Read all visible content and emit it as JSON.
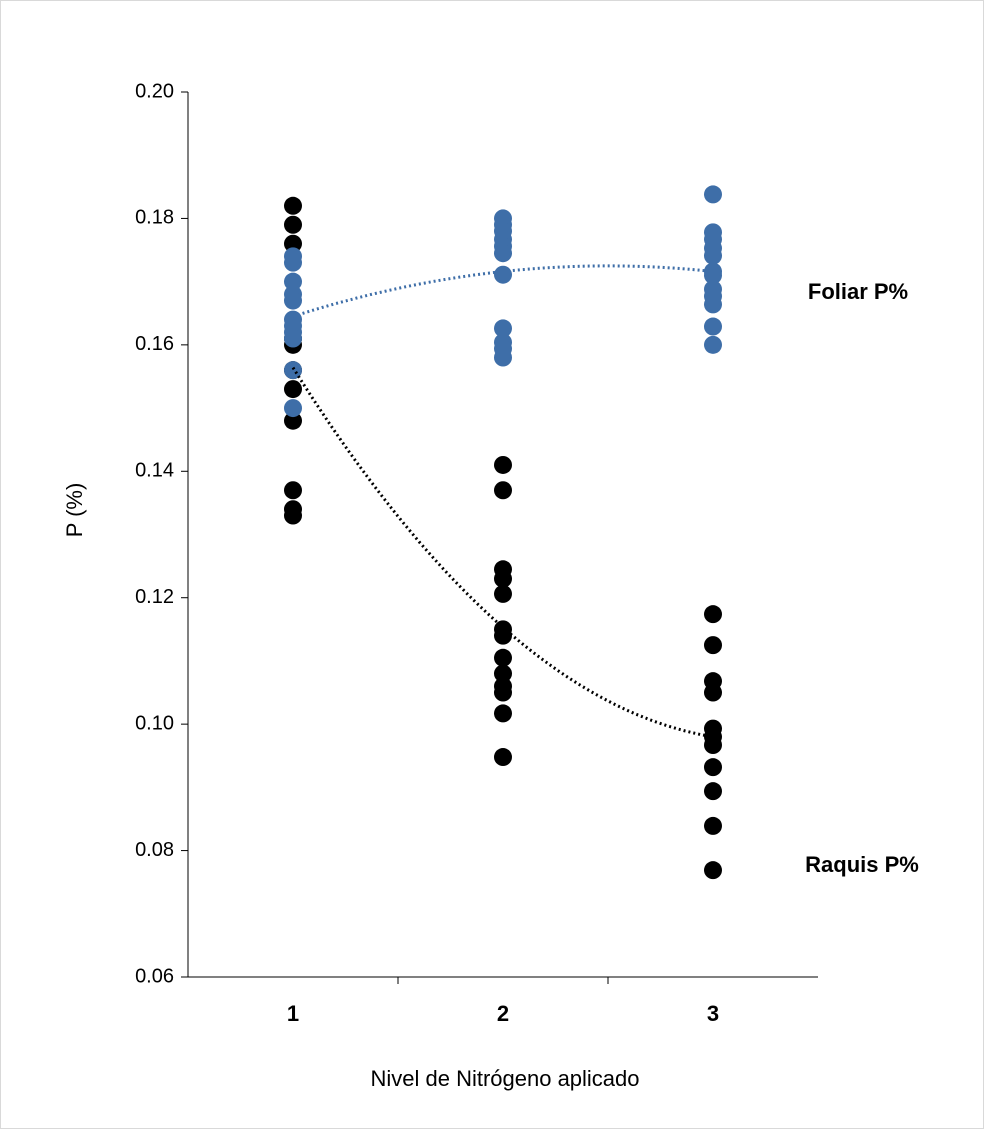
{
  "chart_data": {
    "type": "scatter",
    "x_label": "Nivel de Nitrógeno aplicado",
    "y_label": "P (%)",
    "xlim": [
      0.5,
      3.5
    ],
    "xticks": [
      1,
      2,
      3
    ],
    "ylim": [
      0.06,
      0.2
    ],
    "yticks": [
      {
        "value": 0.06,
        "label": "0.06"
      },
      {
        "value": 0.08,
        "label": "0.08"
      },
      {
        "value": 0.1,
        "label": "0.10"
      },
      {
        "value": 0.12,
        "label": "0.12"
      },
      {
        "value": 0.14,
        "label": "0.14"
      },
      {
        "value": 0.16,
        "label": "0.16"
      },
      {
        "value": 0.18,
        "label": "0.18"
      },
      {
        "value": 0.2,
        "label": "0.20"
      }
    ],
    "series": [
      {
        "name": "Raquis P%",
        "color": "#000000",
        "x": [
          1,
          1,
          1,
          1,
          1,
          1,
          1,
          1,
          1,
          1,
          1,
          2,
          2,
          2,
          2,
          2,
          2,
          2,
          2,
          2,
          2,
          2,
          2,
          2,
          3,
          3,
          3,
          3,
          3,
          3,
          3,
          3,
          3,
          3,
          3
        ],
        "values": [
          0.182,
          0.179,
          0.176,
          0.161,
          0.16,
          0.156,
          0.153,
          0.148,
          0.137,
          0.134,
          0.133,
          0.141,
          0.137,
          0.1245,
          0.123,
          0.1206,
          0.115,
          0.114,
          0.1105,
          0.108,
          0.106,
          0.105,
          0.1017,
          0.0948,
          0.1174,
          0.1125,
          0.1068,
          0.105,
          0.0993,
          0.098,
          0.0967,
          0.0932,
          0.0894,
          0.0839,
          0.0769
        ],
        "trend": [
          0.1564,
          0.1153,
          0.098
        ]
      },
      {
        "name": "Foliar P%",
        "color": "#3e6ea8",
        "x": [
          1,
          1,
          1,
          1,
          1,
          1,
          1,
          1,
          1,
          1,
          1,
          2,
          2,
          2,
          2,
          2,
          2,
          2,
          2,
          2,
          2,
          2,
          3,
          3,
          3,
          3,
          3,
          3,
          3,
          3,
          3,
          3,
          3,
          3
        ],
        "values": [
          0.174,
          0.173,
          0.17,
          0.168,
          0.167,
          0.164,
          0.163,
          0.162,
          0.161,
          0.156,
          0.15,
          0.18,
          0.179,
          0.178,
          0.1767,
          0.1756,
          0.1745,
          0.1711,
          0.1626,
          0.1604,
          0.1594,
          0.158,
          0.1838,
          0.1778,
          0.1767,
          0.1753,
          0.1741,
          0.1716,
          0.171,
          0.1688,
          0.1677,
          0.1664,
          0.1629,
          0.16
        ],
        "trend": [
          0.1645,
          0.1716,
          0.1716
        ]
      }
    ]
  }
}
